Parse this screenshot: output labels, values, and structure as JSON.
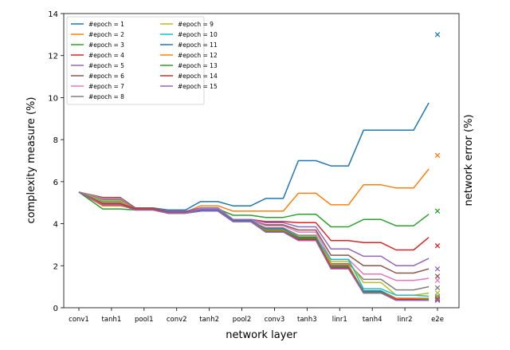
{
  "chart_data": {
    "type": "line",
    "xlabel": "network layer",
    "ylabel": "complexity measure (%)",
    "ylabel_right": "network error (%)",
    "ylim": [
      0,
      14
    ],
    "yticks": [
      0,
      2,
      4,
      6,
      8,
      10,
      12,
      14
    ],
    "categories": [
      "conv1",
      "tanh1",
      "pool1",
      "conv2",
      "tanh2",
      "pool2",
      "conv3",
      "tanh3",
      "linr1",
      "tanh4",
      "linr2",
      "e2e"
    ],
    "series": [
      {
        "name": "#epoch = 1",
        "color": "#1f77b4",
        "values": [
          5.5,
          5.0,
          4.75,
          4.65,
          5.05,
          4.85,
          5.2,
          7.0,
          6.75,
          8.45,
          8.45,
          9.75
        ],
        "e2e": 13.0
      },
      {
        "name": "#epoch = 2",
        "color": "#ff7f0e",
        "values": [
          5.5,
          4.85,
          4.7,
          4.55,
          4.85,
          4.6,
          4.6,
          5.45,
          4.9,
          5.85,
          5.7,
          6.6
        ],
        "e2e": 7.25
      },
      {
        "name": "#epoch = 3",
        "color": "#2ca02c",
        "values": [
          5.5,
          4.7,
          4.65,
          4.55,
          4.7,
          4.4,
          4.3,
          4.45,
          3.85,
          4.2,
          3.9,
          4.45
        ],
        "e2e": 4.6
      },
      {
        "name": "#epoch = 4",
        "color": "#d62728",
        "values": [
          5.5,
          4.9,
          4.7,
          4.55,
          4.75,
          4.2,
          4.1,
          4.05,
          3.2,
          3.1,
          2.75,
          3.35
        ],
        "e2e": 2.95
      },
      {
        "name": "#epoch = 5",
        "color": "#9467bd",
        "values": [
          5.5,
          5.2,
          4.75,
          4.6,
          4.75,
          4.2,
          4.05,
          3.85,
          2.8,
          2.45,
          2.0,
          2.35
        ],
        "e2e": 1.85
      },
      {
        "name": "#epoch = 6",
        "color": "#8c564b",
        "values": [
          5.5,
          5.25,
          4.75,
          4.55,
          4.7,
          4.15,
          3.95,
          3.7,
          2.5,
          2.0,
          1.65,
          1.85
        ],
        "e2e": 1.5
      },
      {
        "name": "#epoch = 7",
        "color": "#e377c2",
        "values": [
          5.5,
          5.2,
          4.7,
          4.5,
          4.7,
          4.15,
          3.9,
          3.6,
          2.3,
          1.6,
          1.3,
          1.4
        ],
        "e2e": 1.3
      },
      {
        "name": "#epoch = 8",
        "color": "#7f7f7f",
        "values": [
          5.5,
          5.15,
          4.7,
          4.5,
          4.65,
          4.1,
          3.8,
          3.45,
          2.1,
          1.35,
          0.85,
          1.0
        ],
        "e2e": 0.95
      },
      {
        "name": "#epoch = 9",
        "color": "#bcbd22",
        "values": [
          5.5,
          5.1,
          4.65,
          4.5,
          4.6,
          4.1,
          3.7,
          3.4,
          2.2,
          1.2,
          0.6,
          0.7
        ],
        "e2e": 0.7
      },
      {
        "name": "#epoch = 10",
        "color": "#17becf",
        "values": [
          5.5,
          5.05,
          4.65,
          4.5,
          4.6,
          4.1,
          3.65,
          3.35,
          2.3,
          0.9,
          0.6,
          0.55
        ],
        "e2e": 0.55
      },
      {
        "name": "#epoch = 11",
        "color": "#1f77b4",
        "values": [
          5.5,
          5.0,
          4.7,
          4.5,
          4.65,
          4.15,
          3.75,
          3.35,
          2.0,
          0.8,
          0.45,
          0.45
        ],
        "e2e": 0.45
      },
      {
        "name": "#epoch = 12",
        "color": "#ff7f0e",
        "values": [
          5.5,
          5.0,
          4.7,
          4.5,
          4.6,
          4.1,
          3.7,
          3.3,
          2.05,
          0.75,
          0.45,
          0.45
        ],
        "e2e": 0.5
      },
      {
        "name": "#epoch = 13",
        "color": "#2ca02c",
        "values": [
          5.5,
          4.95,
          4.7,
          4.5,
          4.6,
          4.1,
          3.65,
          3.3,
          1.95,
          0.75,
          0.4,
          0.4
        ],
        "e2e": 0.4
      },
      {
        "name": "#epoch = 14",
        "color": "#d62728",
        "values": [
          5.5,
          4.95,
          4.7,
          4.5,
          4.6,
          4.1,
          3.6,
          3.25,
          1.9,
          0.7,
          0.4,
          0.35
        ],
        "e2e": 0.38
      },
      {
        "name": "#epoch = 15",
        "color": "#9467bd",
        "values": [
          5.5,
          4.9,
          4.65,
          4.5,
          4.6,
          4.1,
          3.6,
          3.2,
          1.85,
          0.7,
          0.35,
          0.35
        ],
        "e2e": 0.35
      }
    ]
  }
}
